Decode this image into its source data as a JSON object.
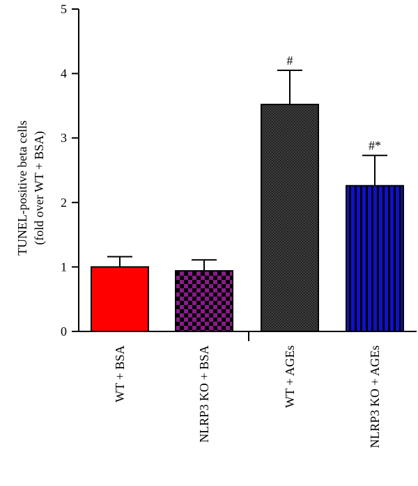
{
  "chart_data": {
    "type": "bar",
    "title": "",
    "xlabel": "",
    "ylabel_lines": [
      "TUNEL-positive beta cells",
      "(fold over WT + BSA)"
    ],
    "ylim": [
      0,
      5
    ],
    "yticks": [
      0,
      1,
      2,
      3,
      4,
      5
    ],
    "categories": [
      "WT + BSA",
      "NLRP3 KO + BSA",
      "WT + AGEs",
      "NLRP3 KO + AGEs"
    ],
    "values": [
      1.0,
      0.94,
      3.52,
      2.26
    ],
    "errors": [
      0.16,
      0.17,
      0.53,
      0.47
    ],
    "annotations": [
      "",
      "",
      "#",
      "#*"
    ],
    "colors": [
      "#ff0000",
      "#8b1a8b",
      "#3a3a3a",
      "#1010cc"
    ],
    "patterns": [
      "solid",
      "checker",
      "dots",
      "vstripes"
    ],
    "grid": false,
    "legend": "none"
  }
}
